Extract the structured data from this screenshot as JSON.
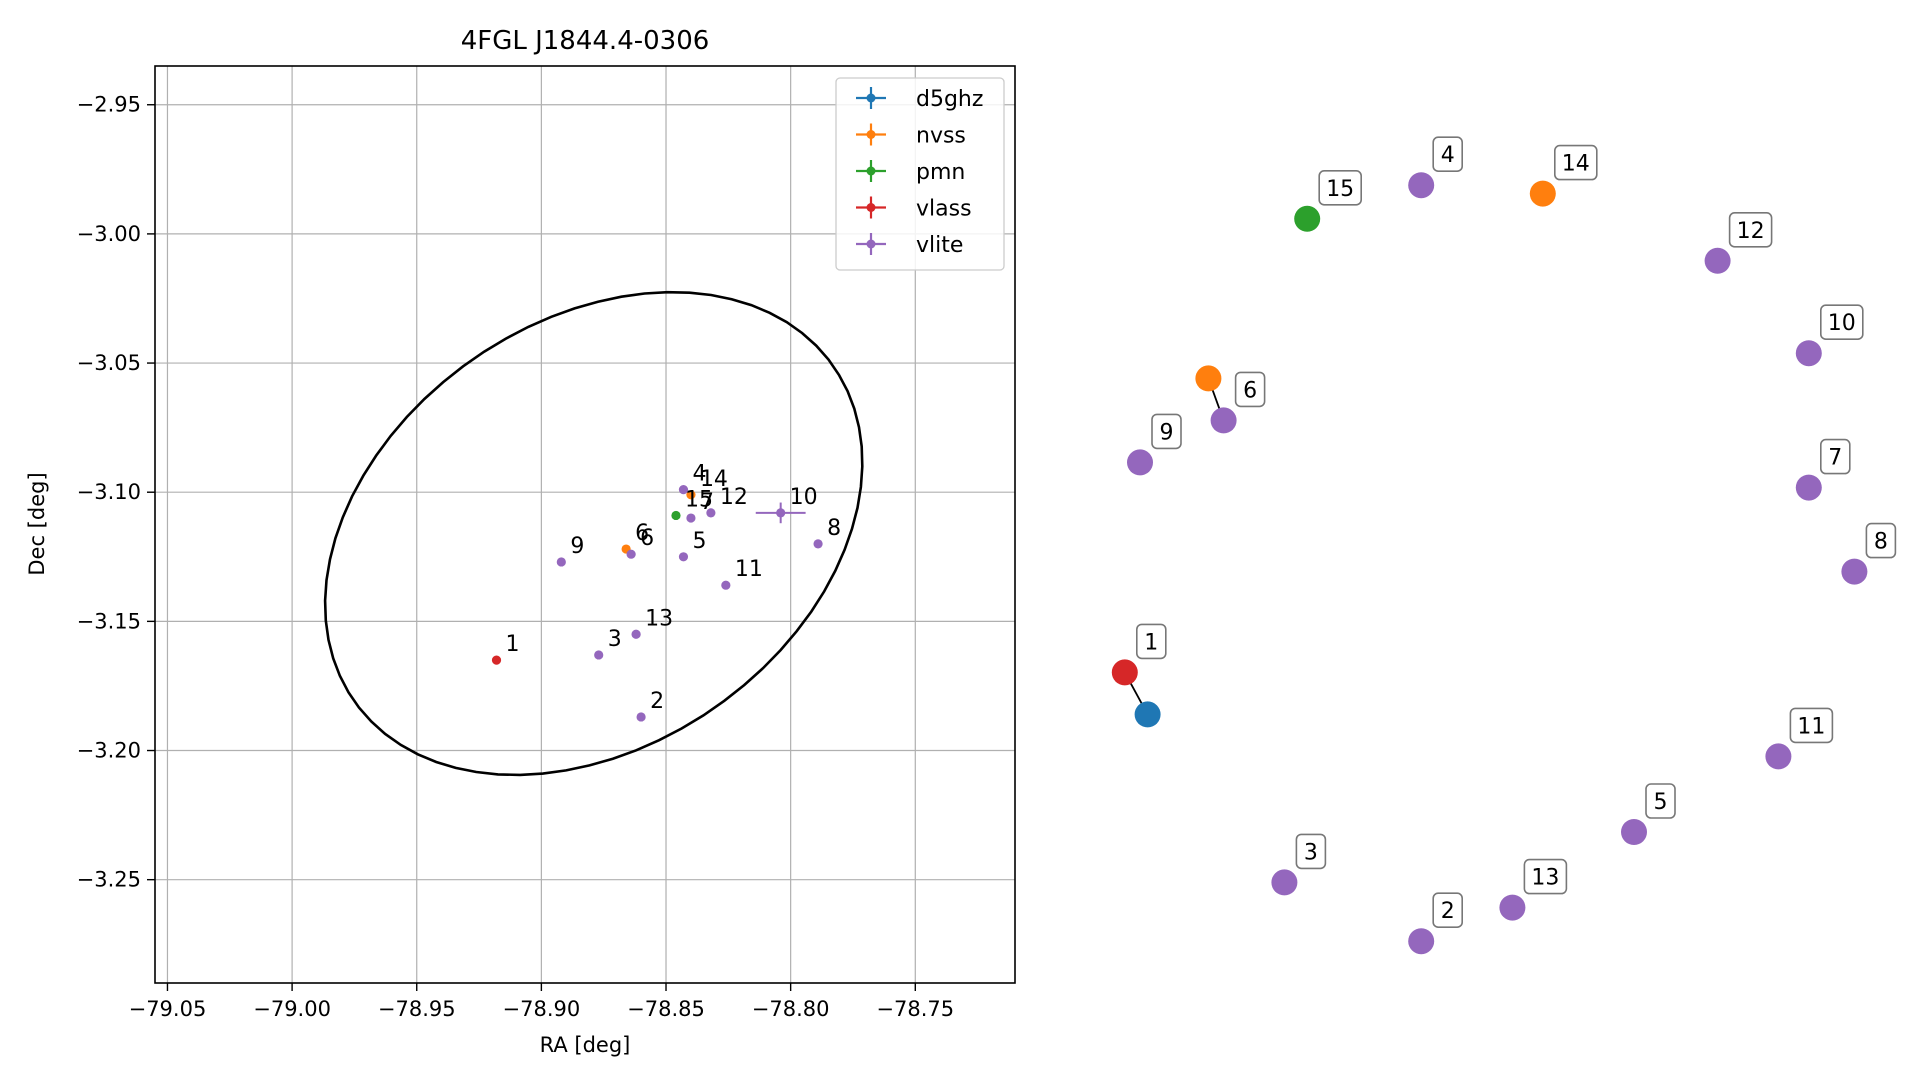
{
  "chart_data": [
    {
      "type": "scatter",
      "title": "4FGL J1844.4-0306",
      "xlabel": "RA [deg]",
      "ylabel": "Dec [deg]",
      "xlim": [
        -79.055,
        -78.71
      ],
      "ylim": [
        -3.29,
        -2.935
      ],
      "xticks": [
        -79.05,
        -79.0,
        -78.95,
        -78.9,
        -78.85,
        -78.8,
        -78.75
      ],
      "xtick_labels": [
        "−79.05",
        "−79.00",
        "−78.95",
        "−78.90",
        "−78.85",
        "−78.80",
        "−78.75"
      ],
      "yticks": [
        -2.95,
        -3.0,
        -3.05,
        -3.1,
        -3.15,
        -3.2,
        -3.25
      ],
      "ytick_labels": [
        "−2.95",
        "−3.00",
        "−3.05",
        "−3.10",
        "−3.15",
        "−3.20",
        "−3.25"
      ],
      "grid": true,
      "legend_position": "top-right",
      "error_ellipse": {
        "center": [
          -78.879,
          -3.116
        ],
        "semi_major_deg": 0.116,
        "semi_minor_deg": 0.083,
        "angle_deg": 32
      },
      "series": [
        {
          "name": "d5ghz",
          "color": "#1f77b4",
          "points": []
        },
        {
          "name": "nvss",
          "color": "#ff7f0e",
          "points": [
            {
              "label": "6",
              "ra": -78.866,
              "dec": -3.122
            },
            {
              "label": "14",
              "ra": -78.84,
              "dec": -3.101
            }
          ]
        },
        {
          "name": "pmn",
          "color": "#2ca02c",
          "points": [
            {
              "label": "15",
              "ra": -78.846,
              "dec": -3.109
            }
          ]
        },
        {
          "name": "vlass",
          "color": "#d62728",
          "points": [
            {
              "label": "1",
              "ra": -78.918,
              "dec": -3.165
            }
          ]
        },
        {
          "name": "vlite",
          "color": "#9467bd",
          "points": [
            {
              "label": "2",
              "ra": -78.86,
              "dec": -3.187
            },
            {
              "label": "3",
              "ra": -78.877,
              "dec": -3.163
            },
            {
              "label": "4",
              "ra": -78.843,
              "dec": -3.099
            },
            {
              "label": "5",
              "ra": -78.843,
              "dec": -3.125
            },
            {
              "label": "6",
              "ra": -78.864,
              "dec": -3.124
            },
            {
              "label": "7",
              "ra": -78.84,
              "dec": -3.11
            },
            {
              "label": "8",
              "ra": -78.789,
              "dec": -3.12
            },
            {
              "label": "9",
              "ra": -78.892,
              "dec": -3.127
            },
            {
              "label": "10",
              "ra": -78.804,
              "dec": -3.108,
              "ra_err": 0.01,
              "dec_err": 0.004
            },
            {
              "label": "11",
              "ra": -78.826,
              "dec": -3.136
            },
            {
              "label": "12",
              "ra": -78.832,
              "dec": -3.108
            },
            {
              "label": "13",
              "ra": -78.862,
              "dec": -3.155
            }
          ]
        }
      ]
    },
    {
      "type": "scatter",
      "title": "",
      "nodes": [
        {
          "label": "1",
          "color": "#d62728",
          "x": 0.03,
          "y": 0.66
        },
        {
          "label": "",
          "color": "#1f77b4",
          "x": 0.06,
          "y": 0.71
        },
        {
          "label": "2",
          "color": "#9467bd",
          "x": 0.42,
          "y": 0.98
        },
        {
          "label": "3",
          "color": "#9467bd",
          "x": 0.24,
          "y": 0.91
        },
        {
          "label": "4",
          "color": "#9467bd",
          "x": 0.42,
          "y": 0.08
        },
        {
          "label": "5",
          "color": "#9467bd",
          "x": 0.7,
          "y": 0.85
        },
        {
          "label": "6",
          "color": "#9467bd",
          "x": 0.16,
          "y": 0.36
        },
        {
          "label": "",
          "color": "#ff7f0e",
          "x": 0.14,
          "y": 0.31
        },
        {
          "label": "7",
          "color": "#9467bd",
          "x": 0.93,
          "y": 0.44
        },
        {
          "label": "8",
          "color": "#9467bd",
          "x": 0.99,
          "y": 0.54
        },
        {
          "label": "9",
          "color": "#9467bd",
          "x": 0.05,
          "y": 0.41
        },
        {
          "label": "10",
          "color": "#9467bd",
          "x": 0.93,
          "y": 0.28
        },
        {
          "label": "11",
          "color": "#9467bd",
          "x": 0.89,
          "y": 0.76
        },
        {
          "label": "12",
          "color": "#9467bd",
          "x": 0.81,
          "y": 0.17
        },
        {
          "label": "13",
          "color": "#9467bd",
          "x": 0.54,
          "y": 0.94
        },
        {
          "label": "14",
          "color": "#ff7f0e",
          "x": 0.58,
          "y": 0.09
        },
        {
          "label": "15",
          "color": "#2ca02c",
          "x": 0.27,
          "y": 0.12
        }
      ],
      "edges": [
        [
          0,
          1
        ],
        [
          6,
          7
        ]
      ]
    }
  ]
}
